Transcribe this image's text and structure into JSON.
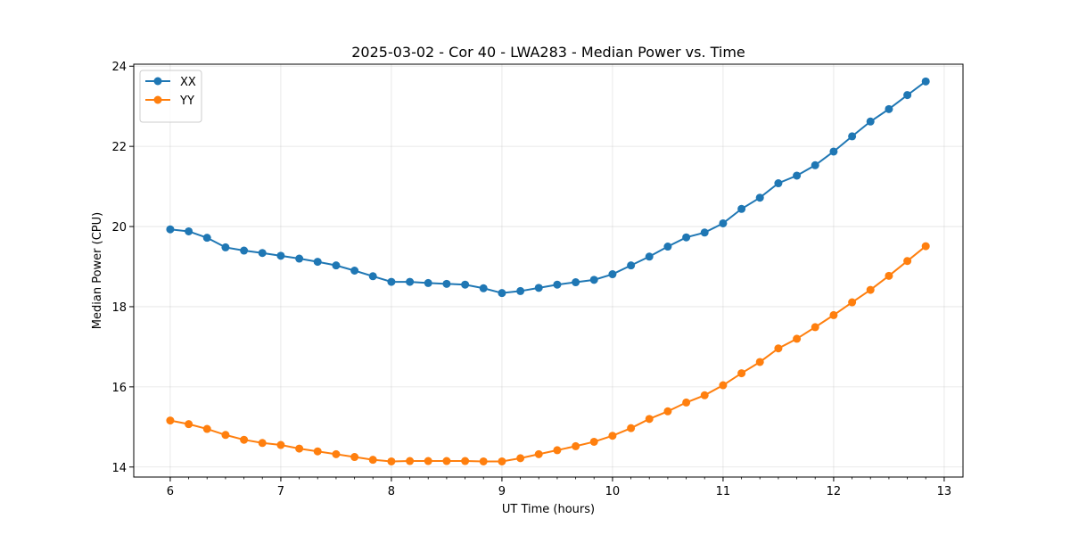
{
  "chart_data": {
    "type": "line",
    "title": "2025-03-02 - Cor 40 - LWA283 - Median Power vs. Time",
    "xlabel": "UT Time (hours)",
    "ylabel": "Median Power (CPU)",
    "xlim": [
      5.67,
      13.17
    ],
    "ylim": [
      13.75,
      24.05
    ],
    "xticks": [
      6,
      7,
      8,
      9,
      10,
      11,
      12,
      13
    ],
    "yticks": [
      14,
      16,
      18,
      20,
      22,
      24
    ],
    "grid": true,
    "legend_position": "top-left",
    "x": [
      6.0,
      6.167,
      6.333,
      6.5,
      6.667,
      6.833,
      7.0,
      7.167,
      7.333,
      7.5,
      7.667,
      7.833,
      8.0,
      8.167,
      8.333,
      8.5,
      8.667,
      8.833,
      9.0,
      9.167,
      9.333,
      9.5,
      9.667,
      9.833,
      10.0,
      10.167,
      10.333,
      10.5,
      10.667,
      10.833,
      11.0,
      11.167,
      11.333,
      11.5,
      11.667,
      11.833,
      12.0,
      12.167,
      12.333,
      12.5,
      12.667,
      12.833
    ],
    "series": [
      {
        "name": "XX",
        "color": "#1f77b4",
        "values": [
          19.93,
          19.88,
          19.72,
          19.48,
          19.4,
          19.34,
          19.27,
          19.2,
          19.12,
          19.03,
          18.9,
          18.76,
          18.62,
          18.62,
          18.59,
          18.57,
          18.55,
          18.46,
          18.34,
          18.39,
          18.47,
          18.55,
          18.61,
          18.67,
          18.81,
          19.03,
          19.25,
          19.5,
          19.73,
          19.85,
          20.08,
          20.44,
          20.72,
          21.08,
          21.27,
          21.53,
          21.87,
          22.25,
          22.62,
          22.93,
          23.28,
          23.62
        ]
      },
      {
        "name": "YY",
        "color": "#ff7f0e",
        "values": [
          15.16,
          15.07,
          14.95,
          14.8,
          14.68,
          14.6,
          14.55,
          14.46,
          14.39,
          14.32,
          14.25,
          14.18,
          14.14,
          14.15,
          14.15,
          14.15,
          14.15,
          14.14,
          14.14,
          14.22,
          14.32,
          14.42,
          14.52,
          14.63,
          14.78,
          14.97,
          15.2,
          15.39,
          15.61,
          15.79,
          16.04,
          16.34,
          16.62,
          16.96,
          17.2,
          17.49,
          17.79,
          18.11,
          18.42,
          18.77,
          19.14,
          19.51
        ]
      }
    ]
  }
}
